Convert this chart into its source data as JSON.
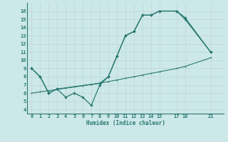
{
  "xlabel": "Humidex (Indice chaleur)",
  "bg_color": "#cce8e8",
  "grid_color": "#c4d8d8",
  "line_color": "#2a7a72",
  "xticks": [
    0,
    1,
    2,
    3,
    4,
    5,
    6,
    7,
    8,
    9,
    10,
    11,
    12,
    13,
    14,
    15,
    17,
    18,
    21
  ],
  "yticks": [
    4,
    5,
    6,
    7,
    8,
    9,
    10,
    11,
    12,
    13,
    14,
    15,
    16
  ],
  "xlim": [
    -0.5,
    22.5
  ],
  "ylim": [
    3.5,
    17.0
  ],
  "line1_x": [
    0,
    1,
    2,
    3,
    4,
    5,
    6,
    7,
    8,
    9,
    10,
    11,
    12,
    13,
    14,
    15,
    17,
    18,
    21
  ],
  "line1_y": [
    9,
    8,
    6,
    6.5,
    5.5,
    6,
    5.5,
    4.5,
    7.0,
    8.0,
    10.5,
    13.0,
    13.5,
    15.5,
    15.5,
    16.0,
    16.0,
    15.0,
    11.0
  ],
  "line2_x": [
    0,
    1,
    2,
    3,
    4,
    5,
    6,
    7,
    8,
    9,
    10,
    11,
    12,
    13,
    14,
    15,
    17,
    18,
    21
  ],
  "line2_y": [
    6.0,
    6.15,
    6.3,
    6.45,
    6.6,
    6.75,
    6.9,
    7.05,
    7.2,
    7.4,
    7.6,
    7.8,
    8.0,
    8.2,
    8.4,
    8.6,
    9.0,
    9.25,
    10.3
  ],
  "line3_x": [
    0,
    1,
    2,
    3,
    8,
    9,
    10,
    11,
    12,
    13,
    14,
    15,
    17,
    18,
    21
  ],
  "line3_y": [
    9.0,
    8.0,
    6.0,
    6.5,
    7.2,
    8.0,
    10.5,
    13.0,
    13.5,
    15.5,
    15.5,
    16.0,
    16.0,
    15.2,
    11.0
  ]
}
